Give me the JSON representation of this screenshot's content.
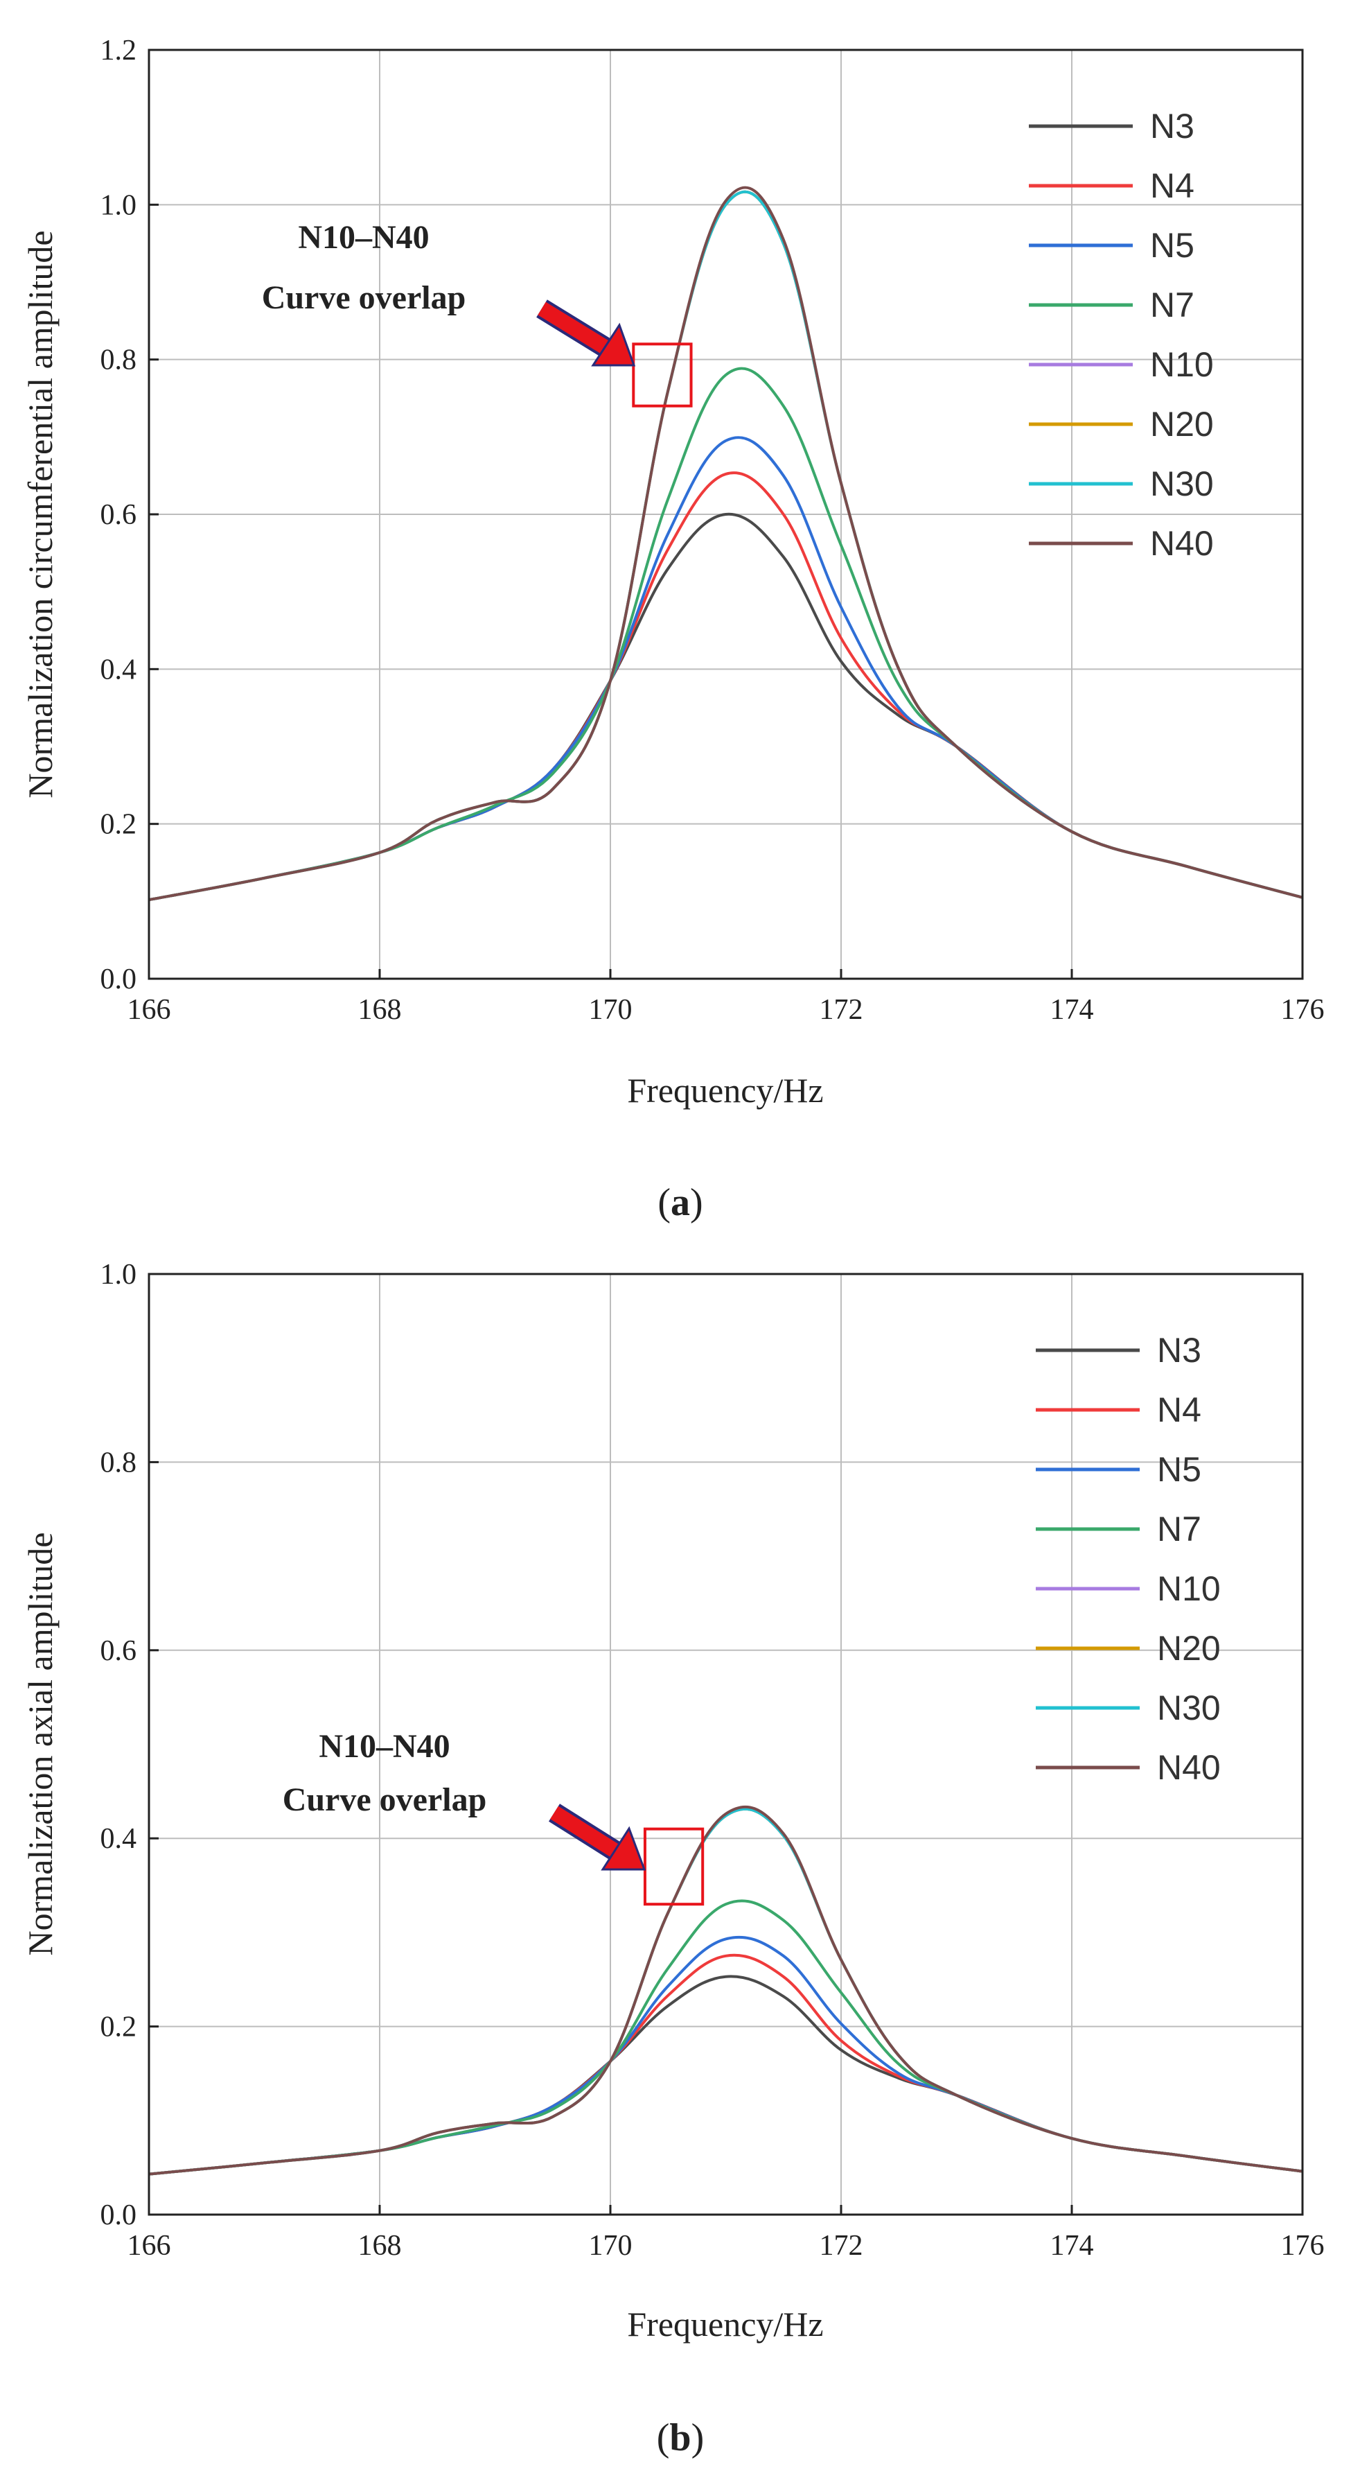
{
  "charts": [
    {
      "caption": "a",
      "title": "",
      "xlabel": "Frequency/Hz",
      "ylabel": "Normalization circumferential amplitude",
      "annotation": {
        "line1": "N10–N40",
        "line2": "Curve overlap"
      }
    },
    {
      "caption": "b",
      "title": "",
      "xlabel": "Frequency/Hz",
      "ylabel": "Normalization axial amplitude",
      "annotation": {
        "line1": "N10–N40",
        "line2": "Curve overlap"
      }
    }
  ],
  "colors": {
    "N3": "#4a4a4a",
    "N4": "#ef3b3b",
    "N5": "#2f6fd6",
    "N7": "#3aa86b",
    "N10": "#a77be0",
    "N20": "#d49a00",
    "N30": "#22c1d0",
    "N40": "#7a4c4c",
    "annotation": "#e8141b",
    "grid": "#bdbdbd"
  },
  "chart_data": [
    {
      "type": "line",
      "title": "",
      "xlabel": "Frequency/Hz",
      "ylabel": "Normalization circumferential amplitude",
      "xlim": [
        166,
        176
      ],
      "ylim": [
        0.0,
        1.2
      ],
      "xticks": [
        "166",
        "168",
        "170",
        "172",
        "174",
        "176"
      ],
      "yticks": [
        "0.0",
        "0.2",
        "0.4",
        "0.6",
        "0.8",
        "1.0",
        "1.2"
      ],
      "grid": true,
      "legend_position": "top-right",
      "x": [
        166,
        167,
        168,
        168.5,
        169,
        169.5,
        170,
        170.5,
        171,
        171.5,
        172,
        172.5,
        173,
        174,
        175,
        176
      ],
      "series": [
        {
          "name": "N3",
          "values": [
            0.102,
            0.13,
            0.163,
            0.195,
            0.222,
            0.27,
            0.385,
            0.53,
            0.6,
            0.545,
            0.41,
            0.34,
            0.3,
            0.19,
            0.145,
            0.105
          ]
        },
        {
          "name": "N4",
          "values": [
            0.102,
            0.13,
            0.163,
            0.195,
            0.222,
            0.27,
            0.385,
            0.555,
            0.652,
            0.6,
            0.44,
            0.345,
            0.3,
            0.19,
            0.145,
            0.105
          ]
        },
        {
          "name": "N5",
          "values": [
            0.102,
            0.13,
            0.163,
            0.195,
            0.222,
            0.27,
            0.385,
            0.575,
            0.695,
            0.65,
            0.48,
            0.35,
            0.3,
            0.19,
            0.145,
            0.105
          ]
        },
        {
          "name": "N7",
          "values": [
            0.102,
            0.13,
            0.163,
            0.195,
            0.224,
            0.265,
            0.385,
            0.62,
            0.78,
            0.74,
            0.56,
            0.38,
            0.3,
            0.19,
            0.145,
            0.105
          ]
        },
        {
          "name": "N10",
          "values": [
            0.102,
            0.13,
            0.163,
            0.205,
            0.228,
            0.245,
            0.385,
            0.76,
            1.0,
            0.95,
            0.64,
            0.4,
            0.3,
            0.19,
            0.145,
            0.105
          ]
        },
        {
          "name": "N20",
          "values": [
            0.102,
            0.13,
            0.163,
            0.205,
            0.228,
            0.245,
            0.385,
            0.76,
            1.0,
            0.95,
            0.64,
            0.4,
            0.3,
            0.19,
            0.145,
            0.105
          ]
        },
        {
          "name": "N30",
          "values": [
            0.102,
            0.13,
            0.163,
            0.205,
            0.228,
            0.245,
            0.385,
            0.76,
            1.0,
            0.95,
            0.64,
            0.4,
            0.3,
            0.19,
            0.145,
            0.105
          ]
        },
        {
          "name": "N40",
          "values": [
            0.102,
            0.13,
            0.163,
            0.205,
            0.228,
            0.245,
            0.385,
            0.76,
            1.005,
            0.955,
            0.64,
            0.4,
            0.3,
            0.19,
            0.145,
            0.105
          ]
        }
      ],
      "annotation_box": {
        "x": [
          170.2,
          170.7
        ],
        "y": [
          0.74,
          0.82
        ]
      }
    },
    {
      "type": "line",
      "title": "",
      "xlabel": "Frequency/Hz",
      "ylabel": "Normalization axial amplitude",
      "xlim": [
        166,
        176
      ],
      "ylim": [
        0.0,
        1.0
      ],
      "xticks": [
        "166",
        "168",
        "170",
        "172",
        "174",
        "176"
      ],
      "yticks": [
        "0.0",
        "0.2",
        "0.4",
        "0.6",
        "0.8",
        "1.0"
      ],
      "grid": true,
      "legend_position": "top-right",
      "x": [
        166,
        167,
        168,
        168.5,
        169,
        169.5,
        170,
        170.5,
        171,
        171.5,
        172,
        172.5,
        173,
        174,
        175,
        176
      ],
      "series": [
        {
          "name": "N3",
          "values": [
            0.043,
            0.055,
            0.068,
            0.082,
            0.094,
            0.115,
            0.163,
            0.222,
            0.253,
            0.232,
            0.175,
            0.145,
            0.127,
            0.081,
            0.062,
            0.046
          ]
        },
        {
          "name": "N4",
          "values": [
            0.043,
            0.055,
            0.068,
            0.082,
            0.094,
            0.115,
            0.163,
            0.233,
            0.275,
            0.253,
            0.185,
            0.147,
            0.127,
            0.081,
            0.062,
            0.046
          ]
        },
        {
          "name": "N5",
          "values": [
            0.043,
            0.055,
            0.068,
            0.082,
            0.094,
            0.115,
            0.163,
            0.243,
            0.293,
            0.275,
            0.203,
            0.15,
            0.127,
            0.081,
            0.062,
            0.046
          ]
        },
        {
          "name": "N7",
          "values": [
            0.043,
            0.055,
            0.068,
            0.082,
            0.095,
            0.112,
            0.163,
            0.262,
            0.33,
            0.313,
            0.236,
            0.16,
            0.127,
            0.081,
            0.062,
            0.046
          ]
        },
        {
          "name": "N10",
          "values": [
            0.043,
            0.055,
            0.068,
            0.087,
            0.097,
            0.104,
            0.163,
            0.321,
            0.424,
            0.403,
            0.271,
            0.169,
            0.127,
            0.081,
            0.062,
            0.046
          ]
        },
        {
          "name": "N20",
          "values": [
            0.043,
            0.055,
            0.068,
            0.087,
            0.097,
            0.104,
            0.163,
            0.321,
            0.424,
            0.403,
            0.271,
            0.169,
            0.127,
            0.081,
            0.062,
            0.046
          ]
        },
        {
          "name": "N30",
          "values": [
            0.043,
            0.055,
            0.068,
            0.087,
            0.097,
            0.104,
            0.163,
            0.321,
            0.424,
            0.403,
            0.271,
            0.169,
            0.127,
            0.081,
            0.062,
            0.046
          ]
        },
        {
          "name": "N40",
          "values": [
            0.043,
            0.055,
            0.068,
            0.087,
            0.097,
            0.104,
            0.163,
            0.321,
            0.426,
            0.405,
            0.271,
            0.169,
            0.127,
            0.081,
            0.062,
            0.046
          ]
        }
      ],
      "annotation_box": {
        "x": [
          170.3,
          170.8
        ],
        "y": [
          0.33,
          0.41
        ]
      }
    }
  ]
}
